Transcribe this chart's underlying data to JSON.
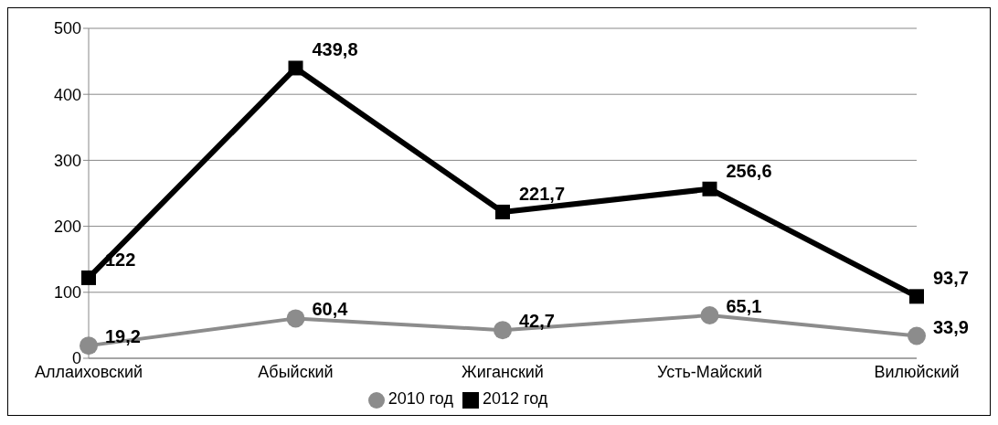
{
  "chart_data": {
    "type": "line",
    "categories": [
      "Аллаиховский",
      "Абыйский",
      "Жиганский",
      "Усть-Майский",
      "Вилюйский"
    ],
    "series": [
      {
        "name": "2010 год",
        "color": "#8c8c8c",
        "marker": "circle",
        "values": [
          19.2,
          60.4,
          42.7,
          65.1,
          33.9
        ],
        "value_labels": [
          "19,2",
          "60,4",
          "42,7",
          "65,1",
          "33,9"
        ]
      },
      {
        "name": "2012 год",
        "color": "#000000",
        "marker": "square",
        "values": [
          122,
          439.8,
          221.7,
          256.6,
          93.7
        ],
        "value_labels": [
          "122",
          "439,8",
          "221,7",
          "256,6",
          "93,7"
        ]
      }
    ],
    "ylim": [
      0,
      500
    ],
    "yticks": [
      0,
      100,
      200,
      300,
      400,
      500
    ],
    "grid": "y",
    "legend": "bottom"
  }
}
